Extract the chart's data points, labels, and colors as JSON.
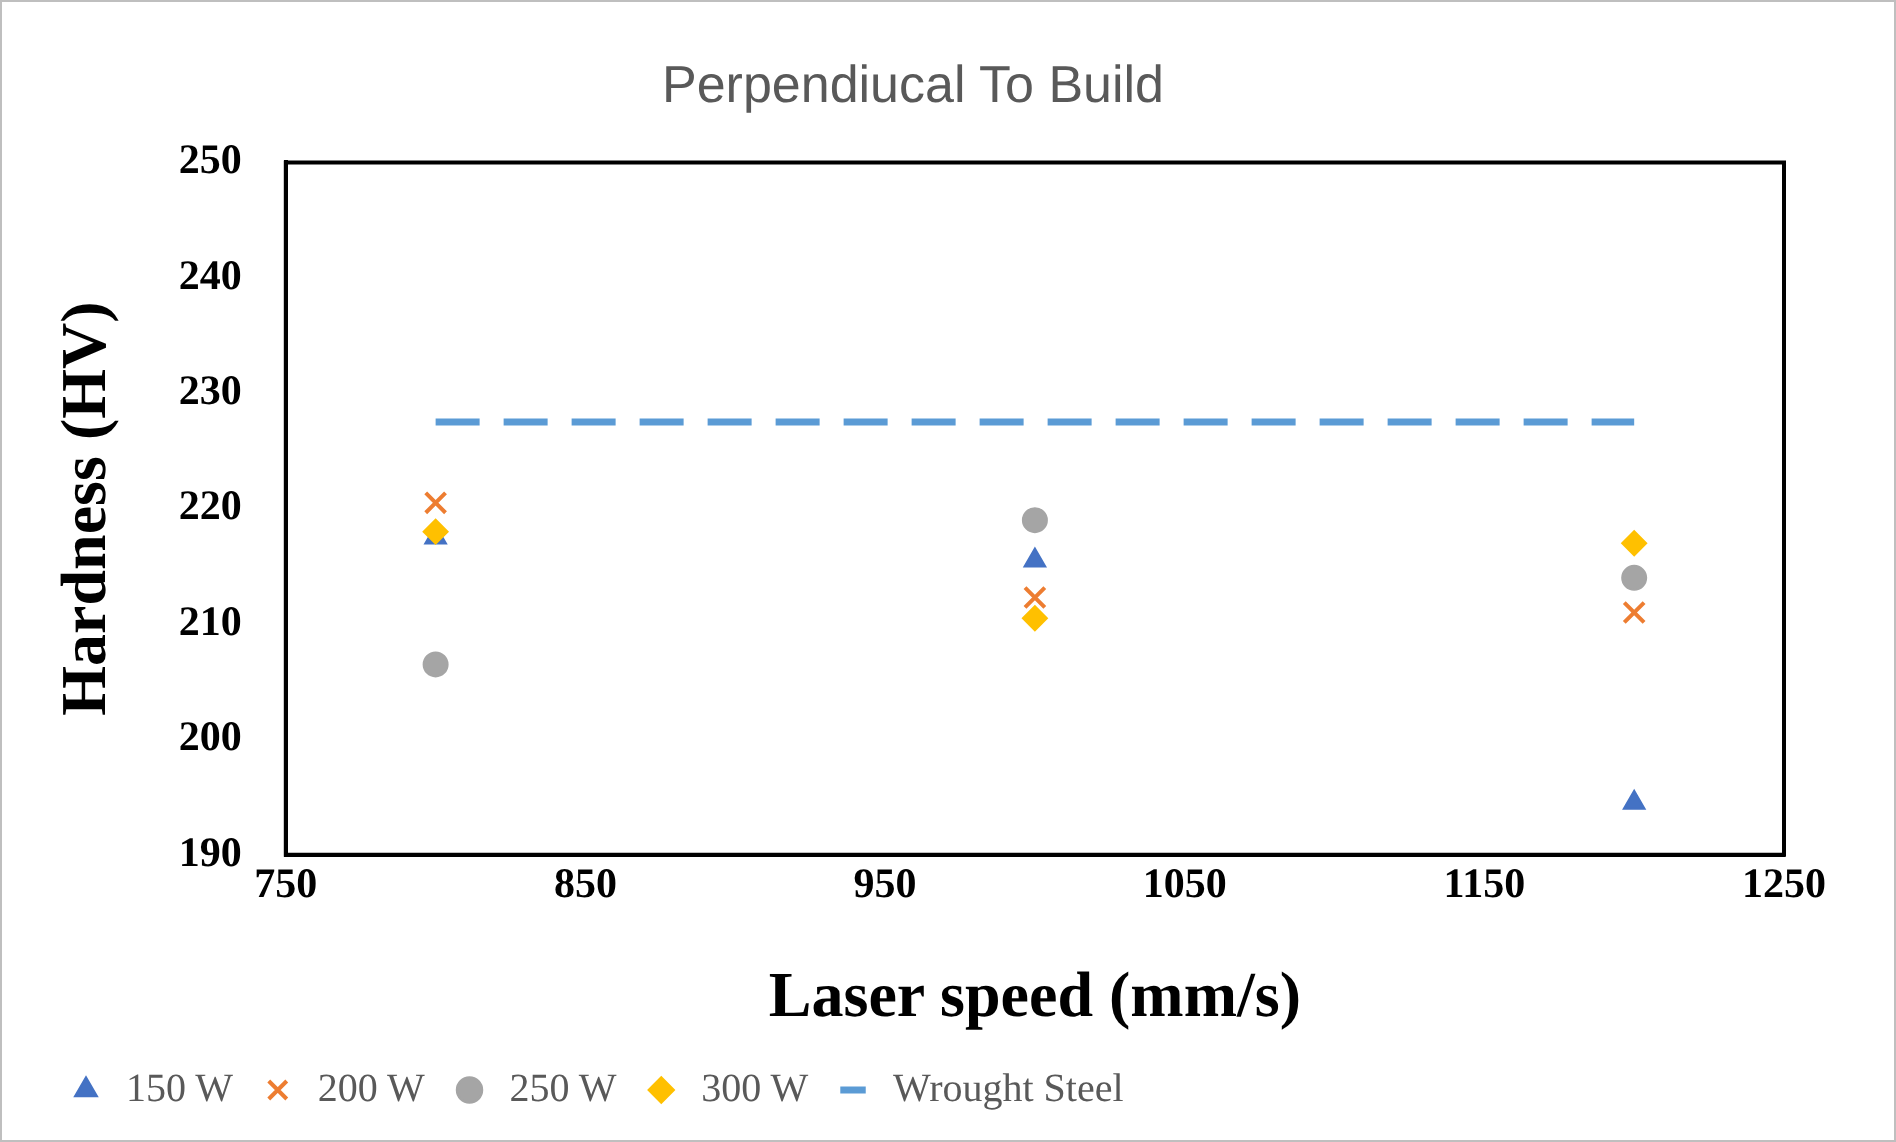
{
  "chart_data": {
    "type": "scatter",
    "title": "Perpendiucal To Build",
    "xlabel": "Laser speed (mm/s)",
    "ylabel": "Hardness (HV)",
    "xlim": [
      750,
      1250
    ],
    "xticks": [
      750,
      850,
      950,
      1050,
      1150,
      1250
    ],
    "ylim": [
      190,
      250
    ],
    "yticks": [
      190,
      200,
      210,
      220,
      230,
      240,
      250
    ],
    "grid": false,
    "legend": "bottom",
    "series": [
      {
        "name": "150 W",
        "color": "#4472c4",
        "marker": "triangle",
        "x": [
          800,
          1000,
          1200
        ],
        "values": [
          217.5,
          215.5,
          194.5
        ]
      },
      {
        "name": "200 W",
        "color": "#ed7d31",
        "marker": "cross",
        "x": [
          800,
          1000,
          1200
        ],
        "values": [
          220.5,
          212.3,
          211
        ]
      },
      {
        "name": "250 W",
        "color": "#a5a5a5",
        "marker": "circle",
        "x": [
          800,
          1000,
          1200
        ],
        "values": [
          206.5,
          219,
          214
        ]
      },
      {
        "name": "300 W",
        "color": "#ffc000",
        "marker": "diamond",
        "x": [
          800,
          1000,
          1200
        ],
        "values": [
          218,
          210.5,
          217
        ]
      },
      {
        "name": "Wrought Steel",
        "type": "line",
        "color": "#5b9bd5",
        "marker": "none",
        "line_style": "dashed",
        "x": [
          800,
          1200
        ],
        "values": [
          227.5,
          227.5
        ]
      }
    ]
  }
}
